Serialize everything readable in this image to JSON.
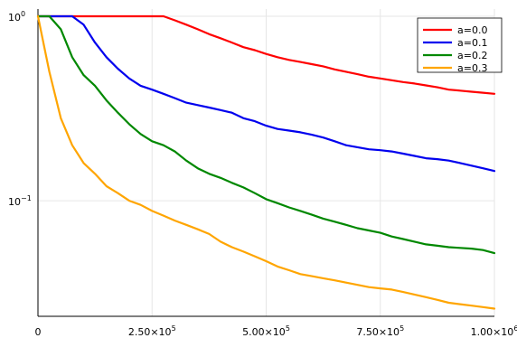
{
  "chart_data": {
    "type": "line",
    "title": "",
    "xlabel": "",
    "ylabel": "",
    "yscale": "log",
    "xlim": [
      0,
      1000000
    ],
    "ylim": [
      0.025,
      1.0
    ],
    "grid": true,
    "legend_position": "top-right",
    "x_ticks": [
      {
        "value": 0,
        "label": "0",
        "sup": ""
      },
      {
        "value": 250000,
        "label": "2.50×10",
        "sup": "5"
      },
      {
        "value": 500000,
        "label": "5.00×10",
        "sup": "5"
      },
      {
        "value": 750000,
        "label": "7.50×10",
        "sup": "5"
      },
      {
        "value": 1000000,
        "label": "1.00×10",
        "sup": "6"
      }
    ],
    "y_ticks": [
      {
        "value": 0.1,
        "label": "10",
        "sup": "−1"
      },
      {
        "value": 1.0,
        "label": "10",
        "sup": "0"
      }
    ],
    "x": [
      0,
      25000,
      50000,
      75000,
      100000,
      125000,
      150000,
      175000,
      200000,
      225000,
      250000,
      275000,
      300000,
      325000,
      350000,
      375000,
      400000,
      425000,
      450000,
      475000,
      500000,
      525000,
      550000,
      575000,
      600000,
      625000,
      650000,
      675000,
      700000,
      725000,
      750000,
      775000,
      800000,
      825000,
      850000,
      875000,
      900000,
      925000,
      950000,
      975000,
      1000000
    ],
    "series": [
      {
        "name": "a=0.0",
        "color": "#ff0000",
        "values": [
          1.0,
          1.0,
          1.0,
          1.0,
          1.0,
          1.0,
          1.0,
          1.0,
          1.0,
          1.0,
          1.0,
          1.0,
          0.95,
          0.9,
          0.85,
          0.8,
          0.76,
          0.72,
          0.68,
          0.655,
          0.625,
          0.6,
          0.58,
          0.565,
          0.55,
          0.535,
          0.515,
          0.5,
          0.485,
          0.47,
          0.46,
          0.45,
          0.44,
          0.432,
          0.422,
          0.412,
          0.4,
          0.395,
          0.39,
          0.385,
          0.38
        ]
      },
      {
        "name": "a=0.1",
        "color": "#0000ee",
        "values": [
          1.0,
          1.0,
          1.0,
          1.0,
          0.9,
          0.72,
          0.6,
          0.52,
          0.46,
          0.42,
          0.4,
          0.38,
          0.36,
          0.34,
          0.33,
          0.32,
          0.31,
          0.3,
          0.28,
          0.27,
          0.255,
          0.245,
          0.24,
          0.235,
          0.228,
          0.22,
          0.21,
          0.2,
          0.195,
          0.19,
          0.188,
          0.185,
          0.18,
          0.175,
          0.17,
          0.168,
          0.165,
          0.16,
          0.155,
          0.15,
          0.145
        ]
      },
      {
        "name": "a=0.2",
        "color": "#008800",
        "values": [
          1.0,
          1.0,
          0.85,
          0.6,
          0.48,
          0.42,
          0.35,
          0.3,
          0.26,
          0.23,
          0.21,
          0.2,
          0.185,
          0.165,
          0.15,
          0.14,
          0.133,
          0.125,
          0.118,
          0.11,
          0.102,
          0.097,
          0.092,
          0.088,
          0.084,
          0.08,
          0.077,
          0.074,
          0.071,
          0.069,
          0.067,
          0.064,
          0.062,
          0.06,
          0.058,
          0.057,
          0.056,
          0.0555,
          0.055,
          0.054,
          0.052
        ]
      },
      {
        "name": "a=0.3",
        "color": "#ffa500",
        "values": [
          1.0,
          0.5,
          0.28,
          0.2,
          0.16,
          0.14,
          0.12,
          0.11,
          0.1,
          0.095,
          0.088,
          0.083,
          0.078,
          0.074,
          0.07,
          0.066,
          0.06,
          0.056,
          0.053,
          0.05,
          0.047,
          0.044,
          0.042,
          0.04,
          0.039,
          0.038,
          0.037,
          0.036,
          0.035,
          0.034,
          0.0335,
          0.033,
          0.032,
          0.031,
          0.03,
          0.029,
          0.028,
          0.0275,
          0.027,
          0.0265,
          0.026
        ]
      }
    ]
  }
}
